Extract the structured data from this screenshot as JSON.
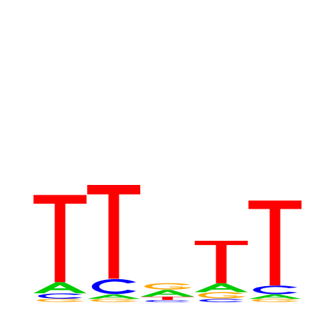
{
  "chart_data": {
    "type": "sequence-logo",
    "alphabet": [
      "A",
      "C",
      "G",
      "T"
    ],
    "colors": {
      "A": "#00cc00",
      "C": "#0000ff",
      "G": "#ffa500",
      "T": "#ff0000"
    },
    "ylim": [
      0,
      2
    ],
    "positions": [
      {
        "letters": [
          {
            "base": "G",
            "height": 0.03
          },
          {
            "base": "C",
            "height": 0.05
          },
          {
            "base": "A",
            "height": 0.1
          },
          {
            "base": "T",
            "height": 0.78
          }
        ]
      },
      {
        "letters": [
          {
            "base": "G",
            "height": 0.03
          },
          {
            "base": "A",
            "height": 0.04
          },
          {
            "base": "C",
            "height": 0.14
          },
          {
            "base": "T",
            "height": 0.84
          }
        ]
      },
      {
        "letters": [
          {
            "base": "C",
            "height": 0.02
          },
          {
            "base": "T",
            "height": 0.03
          },
          {
            "base": "A",
            "height": 0.06
          },
          {
            "base": "G",
            "height": 0.06
          }
        ]
      },
      {
        "letters": [
          {
            "base": "C",
            "height": 0.03
          },
          {
            "base": "G",
            "height": 0.06
          },
          {
            "base": "A",
            "height": 0.08
          },
          {
            "base": "T",
            "height": 0.38
          }
        ]
      },
      {
        "letters": [
          {
            "base": "G",
            "height": 0.03
          },
          {
            "base": "A",
            "height": 0.04
          },
          {
            "base": "C",
            "height": 0.08
          },
          {
            "base": "T",
            "height": 0.76
          }
        ]
      }
    ]
  }
}
